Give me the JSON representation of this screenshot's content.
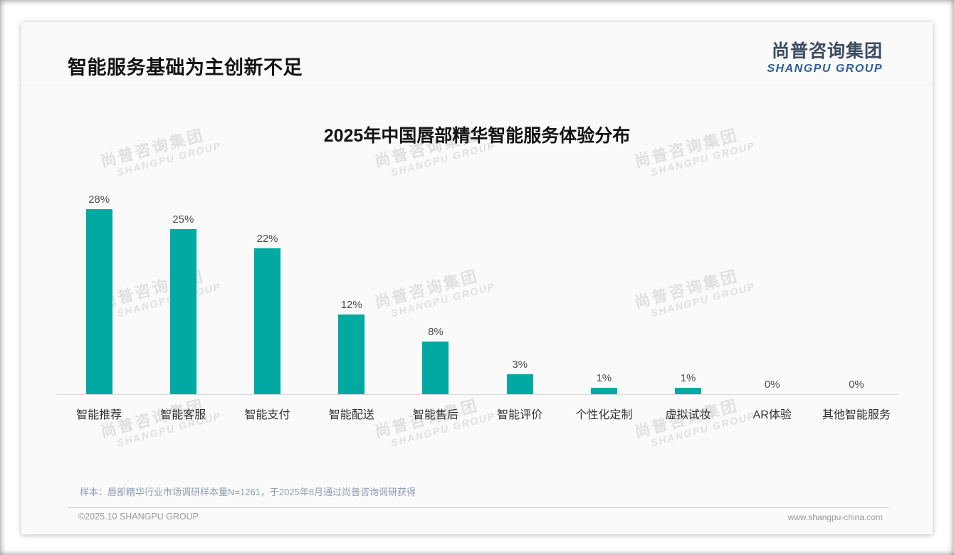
{
  "header": {
    "title": "智能服务基础为主创新不足"
  },
  "logo": {
    "zh": "尚普咨询集团",
    "en": "SHANGPU GROUP"
  },
  "watermark": {
    "zh": "尚普咨询集团",
    "en": "SHANGPU GROUP"
  },
  "chart_data": {
    "type": "bar",
    "title": "2025年中国唇部精华智能服务体验分布",
    "categories": [
      "智能推荐",
      "智能客服",
      "智能支付",
      "智能配送",
      "智能售后",
      "智能评价",
      "个性化定制",
      "虚拟试妆",
      "AR体验",
      "其他智能服务"
    ],
    "values": [
      28,
      25,
      22,
      12,
      8,
      3,
      1,
      1,
      0,
      0
    ],
    "value_labels": [
      "28%",
      "25%",
      "22%",
      "12%",
      "8%",
      "3%",
      "1%",
      "1%",
      "0%",
      "0%"
    ],
    "unit": "%",
    "ylim": [
      0,
      30
    ],
    "bar_color": "#00a9a2",
    "grid": false,
    "legend": false
  },
  "note": "样本：唇部精华行业市场调研样本量N=1261，于2025年8月通过尚普咨询调研获得",
  "footer": {
    "left": "©2025.10 SHANGPU GROUP",
    "right": "www.shangpu-china.com"
  }
}
